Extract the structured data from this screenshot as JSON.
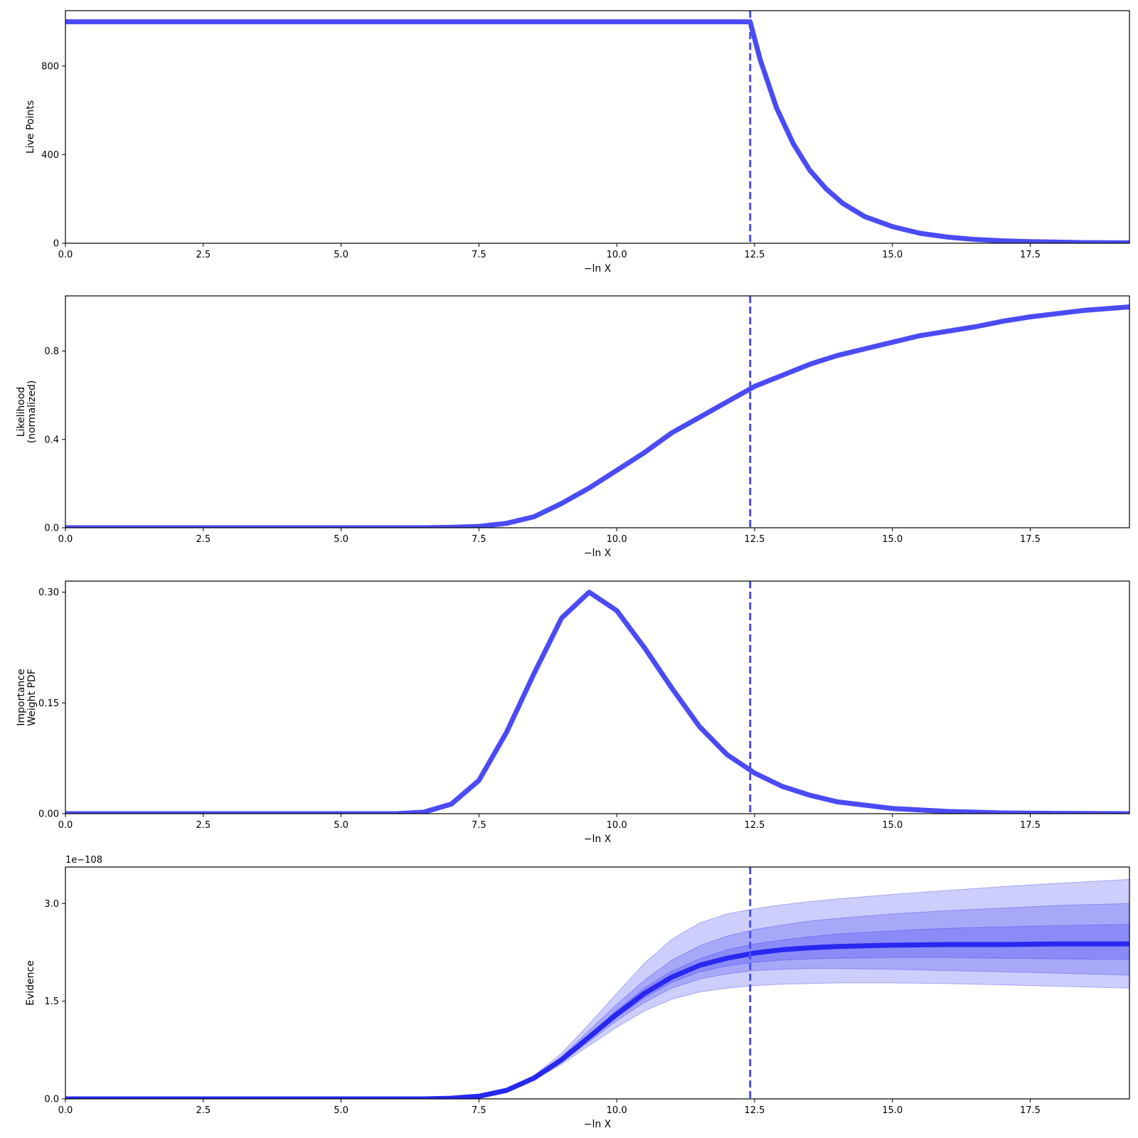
{
  "chart_data": [
    {
      "type": "line",
      "ylabel": [
        "Live Points"
      ],
      "xlabel": "−ln X",
      "xlim": [
        0,
        19.3
      ],
      "ylim": [
        0,
        1050
      ],
      "xticks": [
        0,
        2.5,
        5,
        7.5,
        10,
        12.5,
        15,
        17.5
      ],
      "xtick_labels": [
        "0.0",
        "2.5",
        "5.0",
        "7.5",
        "10.0",
        "12.5",
        "15.0",
        "17.5"
      ],
      "yticks": [
        0,
        400,
        800
      ],
      "ytick_labels": [
        "0",
        "400",
        "800"
      ],
      "vline_x": 12.42,
      "color": "#4b4bf5",
      "series": [
        {
          "x": [
            0,
            12.42,
            12.6,
            12.9,
            13.2,
            13.5,
            13.8,
            14.1,
            14.5,
            15.0,
            15.5,
            16.0,
            16.5,
            17.0,
            17.5,
            18.0,
            18.5,
            19.3
          ],
          "y": [
            1000,
            1000,
            830,
            610,
            450,
            330,
            245,
            180,
            120,
            75,
            45,
            28,
            17,
            11,
            7,
            5,
            3,
            2
          ]
        }
      ]
    },
    {
      "type": "line",
      "ylabel": [
        "Likelihood",
        "(normalized)"
      ],
      "xlabel": "−ln X",
      "xlim": [
        0,
        19.3
      ],
      "ylim": [
        0,
        1.05
      ],
      "xticks": [
        0,
        2.5,
        5,
        7.5,
        10,
        12.5,
        15,
        17.5
      ],
      "xtick_labels": [
        "0.0",
        "2.5",
        "5.0",
        "7.5",
        "10.0",
        "12.5",
        "15.0",
        "17.5"
      ],
      "yticks": [
        0,
        0.4,
        0.8
      ],
      "ytick_labels": [
        "0.0",
        "0.4",
        "0.8"
      ],
      "vline_x": 12.42,
      "color": "#4b4bf5",
      "series": [
        {
          "x": [
            0,
            6.5,
            7.0,
            7.5,
            8.0,
            8.5,
            9.0,
            9.5,
            10.0,
            10.5,
            11.0,
            11.5,
            12.0,
            12.5,
            13.0,
            13.5,
            14.0,
            14.5,
            15.0,
            15.5,
            16.0,
            16.5,
            17.0,
            17.5,
            18.0,
            18.5,
            19.3
          ],
          "y": [
            0,
            0,
            0.002,
            0.006,
            0.02,
            0.05,
            0.11,
            0.18,
            0.26,
            0.34,
            0.43,
            0.5,
            0.57,
            0.64,
            0.69,
            0.74,
            0.78,
            0.81,
            0.84,
            0.87,
            0.89,
            0.91,
            0.935,
            0.955,
            0.97,
            0.985,
            1.0
          ]
        }
      ]
    },
    {
      "type": "line",
      "ylabel": [
        "Importance",
        "Weight PDF"
      ],
      "xlabel": "−ln X",
      "xlim": [
        0,
        19.3
      ],
      "ylim": [
        0,
        0.315
      ],
      "xticks": [
        0,
        2.5,
        5,
        7.5,
        10,
        12.5,
        15,
        17.5
      ],
      "xtick_labels": [
        "0.0",
        "2.5",
        "5.0",
        "7.5",
        "10.0",
        "12.5",
        "15.0",
        "17.5"
      ],
      "yticks": [
        0,
        0.15,
        0.3
      ],
      "ytick_labels": [
        "0.00",
        "0.15",
        "0.30"
      ],
      "vline_x": 12.42,
      "color": "#4b4bf5",
      "series": [
        {
          "x": [
            0,
            6.0,
            6.5,
            7.0,
            7.5,
            8.0,
            8.5,
            9.0,
            9.5,
            10.0,
            10.5,
            11.0,
            11.5,
            12.0,
            12.5,
            13.0,
            13.5,
            14.0,
            15.0,
            16.0,
            17.0,
            18.0,
            19.3
          ],
          "y": [
            0,
            0,
            0.002,
            0.013,
            0.045,
            0.11,
            0.19,
            0.265,
            0.3,
            0.275,
            0.225,
            0.17,
            0.118,
            0.08,
            0.055,
            0.037,
            0.025,
            0.016,
            0.007,
            0.003,
            0.001,
            0.0004,
            0
          ]
        }
      ]
    },
    {
      "type": "area",
      "ylabel": [
        "Evidence"
      ],
      "xlabel": "−ln X",
      "scale_label": "1e−108",
      "xlim": [
        0,
        19.3
      ],
      "ylim": [
        0,
        3.56
      ],
      "xticks": [
        0,
        2.5,
        5,
        7.5,
        10,
        12.5,
        15,
        17.5
      ],
      "xtick_labels": [
        "0.0",
        "2.5",
        "5.0",
        "7.5",
        "10.0",
        "12.5",
        "15.0",
        "17.5"
      ],
      "yticks": [
        0,
        1.5,
        3.0
      ],
      "ytick_labels": [
        "0.0",
        "1.5",
        "3.0"
      ],
      "vline_x": 12.42,
      "color": "#2828f0",
      "x": [
        0,
        6.5,
        7.0,
        7.5,
        8.0,
        8.5,
        9.0,
        9.5,
        10.0,
        10.5,
        11.0,
        11.5,
        12.0,
        12.5,
        13.0,
        13.5,
        14.0,
        15.0,
        16.0,
        17.0,
        18.0,
        19.3
      ],
      "median": [
        0,
        0,
        0.01,
        0.04,
        0.13,
        0.32,
        0.6,
        0.95,
        1.3,
        1.62,
        1.87,
        2.05,
        2.16,
        2.24,
        2.29,
        2.32,
        2.34,
        2.36,
        2.37,
        2.37,
        2.38,
        2.38
      ],
      "bands": [
        {
          "lower": [
            0,
            0,
            0.01,
            0.04,
            0.12,
            0.29,
            0.53,
            0.82,
            1.1,
            1.35,
            1.53,
            1.64,
            1.7,
            1.74,
            1.76,
            1.77,
            1.78,
            1.78,
            1.77,
            1.75,
            1.73,
            1.7
          ],
          "upper": [
            0,
            0,
            0.01,
            0.045,
            0.14,
            0.36,
            0.7,
            1.15,
            1.62,
            2.08,
            2.45,
            2.7,
            2.84,
            2.92,
            2.98,
            3.03,
            3.07,
            3.14,
            3.2,
            3.26,
            3.31,
            3.37
          ]
        },
        {
          "lower": [
            0,
            0,
            0.01,
            0.04,
            0.125,
            0.3,
            0.56,
            0.88,
            1.2,
            1.48,
            1.7,
            1.84,
            1.92,
            1.97,
            1.99,
            2.0,
            2.0,
            1.99,
            1.97,
            1.95,
            1.93,
            1.9
          ],
          "upper": [
            0,
            0,
            0.01,
            0.042,
            0.135,
            0.34,
            0.65,
            1.05,
            1.45,
            1.82,
            2.13,
            2.35,
            2.5,
            2.6,
            2.67,
            2.73,
            2.77,
            2.84,
            2.89,
            2.93,
            2.97,
            3.0
          ]
        },
        {
          "lower": [
            0,
            0,
            0.01,
            0.04,
            0.128,
            0.31,
            0.58,
            0.92,
            1.25,
            1.55,
            1.79,
            1.95,
            2.04,
            2.1,
            2.13,
            2.15,
            2.16,
            2.17,
            2.17,
            2.16,
            2.15,
            2.14
          ],
          "upper": [
            0,
            0,
            0.01,
            0.041,
            0.132,
            0.33,
            0.62,
            0.99,
            1.36,
            1.7,
            1.96,
            2.15,
            2.29,
            2.38,
            2.44,
            2.49,
            2.53,
            2.58,
            2.62,
            2.64,
            2.66,
            2.68
          ]
        }
      ]
    }
  ]
}
